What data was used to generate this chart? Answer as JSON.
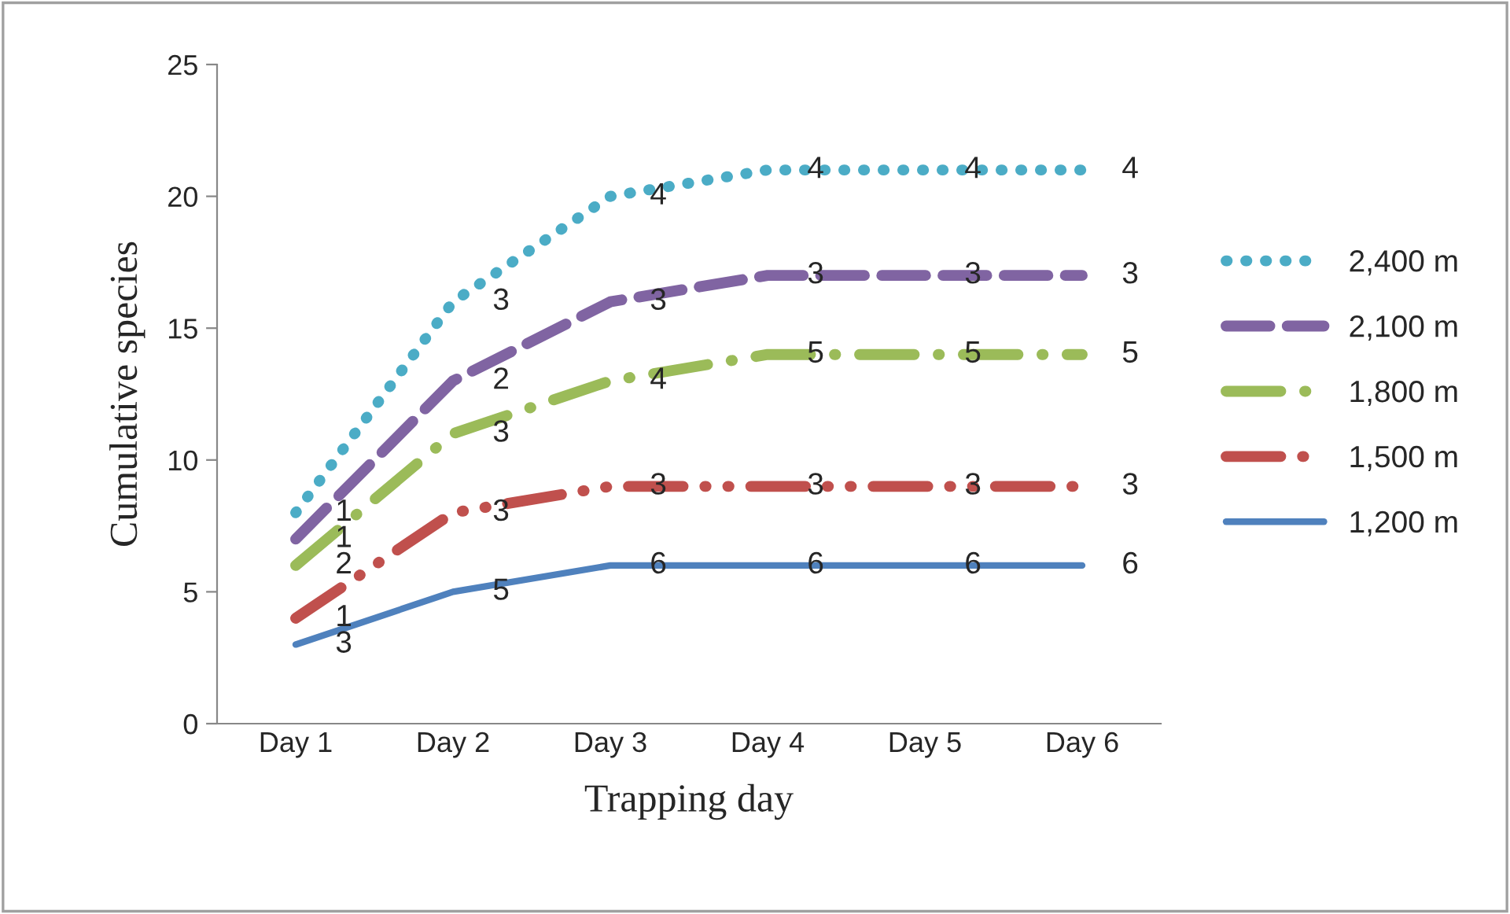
{
  "chart_data": {
    "type": "line",
    "xlabel": "Trapping day",
    "ylabel": "Cumulative species",
    "categories": [
      "Day 1",
      "Day 2",
      "Day 3",
      "Day 4",
      "Day 5",
      "Day 6"
    ],
    "series": [
      {
        "name": "2,400 m",
        "color": "#4bacc6",
        "line_style": "dotted",
        "values": [
          8,
          16,
          20,
          21,
          21,
          21
        ]
      },
      {
        "name": "2,100 m",
        "color": "#8064a2",
        "line_style": "dashed",
        "values": [
          7,
          13,
          16,
          17,
          17,
          17
        ]
      },
      {
        "name": "1,800 m",
        "color": "#9bbb59",
        "line_style": "dashdot",
        "values": [
          6,
          11,
          13,
          14,
          14,
          14
        ]
      },
      {
        "name": "1,500 m",
        "color": "#c0504d",
        "line_style": "dashdotdot",
        "values": [
          4,
          8,
          9,
          9,
          9,
          9
        ]
      },
      {
        "name": "1,200 m",
        "color": "#4f81bd",
        "line_style": "solid",
        "values": [
          3,
          5,
          6,
          6,
          6,
          6
        ]
      }
    ],
    "annotations": [
      {
        "text": "1",
        "x": "Day 1",
        "y": 8
      },
      {
        "text": "3",
        "x": "Day 2",
        "y": 16
      },
      {
        "text": "4",
        "x": "Day 3",
        "y": 20
      },
      {
        "text": "4",
        "x": "Day 4",
        "y": 21
      },
      {
        "text": "4",
        "x": "Day 5",
        "y": 21
      },
      {
        "text": "4",
        "x": "Day 6",
        "y": 21
      },
      {
        "text": "1",
        "x": "Day 1",
        "y": 7
      },
      {
        "text": "2",
        "x": "Day 2",
        "y": 13
      },
      {
        "text": "3",
        "x": "Day 3",
        "y": 16
      },
      {
        "text": "3",
        "x": "Day 4",
        "y": 17
      },
      {
        "text": "3",
        "x": "Day 5",
        "y": 17
      },
      {
        "text": "3",
        "x": "Day 6",
        "y": 17
      },
      {
        "text": "2",
        "x": "Day 1",
        "y": 6
      },
      {
        "text": "3",
        "x": "Day 2",
        "y": 11
      },
      {
        "text": "4",
        "x": "Day 3",
        "y": 13
      },
      {
        "text": "5",
        "x": "Day 4",
        "y": 14
      },
      {
        "text": "5",
        "x": "Day 5",
        "y": 14
      },
      {
        "text": "5",
        "x": "Day 6",
        "y": 14
      },
      {
        "text": "1",
        "x": "Day 1",
        "y": 4
      },
      {
        "text": "3",
        "x": "Day 2",
        "y": 8
      },
      {
        "text": "3",
        "x": "Day 3",
        "y": 9
      },
      {
        "text": "3",
        "x": "Day 4",
        "y": 9
      },
      {
        "text": "3",
        "x": "Day 5",
        "y": 9
      },
      {
        "text": "3",
        "x": "Day 6",
        "y": 9
      },
      {
        "text": "3",
        "x": "Day 1",
        "y": 3
      },
      {
        "text": "5",
        "x": "Day 2",
        "y": 5
      },
      {
        "text": "6",
        "x": "Day 3",
        "y": 6
      },
      {
        "text": "6",
        "x": "Day 4",
        "y": 6
      },
      {
        "text": "6",
        "x": "Day 5",
        "y": 6
      },
      {
        "text": "6",
        "x": "Day 6",
        "y": 6
      }
    ],
    "ylim": [
      0,
      25
    ],
    "yticks": [
      0,
      5,
      10,
      15,
      20,
      25
    ],
    "grid": false,
    "legend": "right"
  }
}
